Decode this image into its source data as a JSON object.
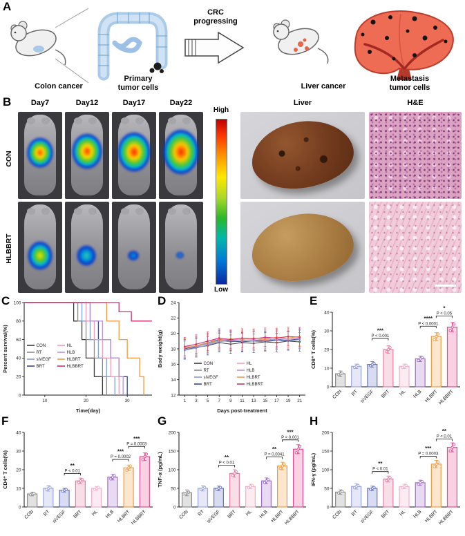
{
  "panels": {
    "A": "A",
    "B": "B",
    "C": "C",
    "D": "D",
    "E": "E",
    "F": "F",
    "G": "G",
    "H": "H"
  },
  "panelA": {
    "arrow_label_line1": "CRC",
    "arrow_label_line2": "progressing",
    "captions": {
      "colon": "Colon cancer",
      "primary_line1": "Primary",
      "primary_line2": "tumor cells",
      "liver": "Liver cancer",
      "metastasis_line1": "Metastasis",
      "metastasis_line2": "tumor cells"
    }
  },
  "panelB": {
    "day_headers": [
      "Day7",
      "Day12",
      "Day17",
      "Day22"
    ],
    "liver_header": "Liver",
    "he_header": "H&E",
    "row_labels": [
      "CON",
      "HLBBRT"
    ],
    "colorbar_high": "High",
    "colorbar_low": "Low"
  },
  "groups": [
    {
      "name": "CON",
      "line_color": "#3a3a3a",
      "bar_color": "#8a8a8a"
    },
    {
      "name": "RT",
      "line_color": "#8a8a8a",
      "bar_color": "#9aa4de"
    },
    {
      "name": "siVEGF",
      "line_color": "#7e9fd8",
      "bar_color": "#6272c8"
    },
    {
      "name": "BRT",
      "line_color": "#32458f",
      "bar_color": "#e87d9e"
    },
    {
      "name": "HL",
      "line_color": "#f49ab5",
      "bar_color": "#f5aec6"
    },
    {
      "name": "HLB",
      "line_color": "#b793d6",
      "bar_color": "#a06cc8"
    },
    {
      "name": "HLBRT",
      "line_color": "#f59a3d",
      "bar_color": "#f59a3d"
    },
    {
      "name": "HLBBRT",
      "line_color": "#cf2d6e",
      "bar_color": "#e8488f"
    }
  ],
  "chart_data": [
    {
      "panel": "C",
      "type": "line",
      "step": true,
      "xlabel": "Time(day)",
      "ylabel": "Percent survival(%)",
      "xlim": [
        5,
        36
      ],
      "ylim": [
        0,
        100
      ],
      "xticks": [
        10,
        20,
        30
      ],
      "yticks": [
        0,
        20,
        40,
        60,
        80,
        100
      ],
      "legend_x": 4,
      "legend_y": 62,
      "legend_dx": 44,
      "legend_cols": [
        [
          "CON",
          "RT",
          "siVEGF",
          "BRT"
        ],
        [
          "HL",
          "HLB",
          "HLBRT",
          "HLBBRT"
        ]
      ],
      "series": [
        {
          "name": "CON",
          "color": "#3a3a3a",
          "points": [
            [
              5,
              100
            ],
            [
              15,
              100
            ],
            [
              17,
              80
            ],
            [
              19,
              60
            ],
            [
              20,
              40
            ],
            [
              22,
              20
            ],
            [
              24,
              0
            ]
          ]
        },
        {
          "name": "RT",
          "color": "#8a8a8a",
          "points": [
            [
              5,
              100
            ],
            [
              16,
              100
            ],
            [
              18,
              80
            ],
            [
              20,
              60
            ],
            [
              22,
              40
            ],
            [
              24,
              20
            ],
            [
              25,
              0
            ]
          ]
        },
        {
          "name": "siVEGF",
          "color": "#7e9fd8",
          "points": [
            [
              5,
              100
            ],
            [
              17,
              100
            ],
            [
              19,
              80
            ],
            [
              21,
              60
            ],
            [
              23,
              40
            ],
            [
              25,
              20
            ],
            [
              27,
              0
            ]
          ]
        },
        {
          "name": "BRT",
          "color": "#32458f",
          "points": [
            [
              5,
              100
            ],
            [
              19,
              100
            ],
            [
              21,
              80
            ],
            [
              23,
              60
            ],
            [
              26,
              40
            ],
            [
              28,
              20
            ],
            [
              30,
              0
            ]
          ]
        },
        {
          "name": "HL",
          "color": "#f49ab5",
          "points": [
            [
              5,
              100
            ],
            [
              17,
              100
            ],
            [
              20,
              80
            ],
            [
              22,
              60
            ],
            [
              24,
              40
            ],
            [
              26,
              20
            ],
            [
              28,
              0
            ]
          ]
        },
        {
          "name": "HLB",
          "color": "#b793d6",
          "points": [
            [
              5,
              100
            ],
            [
              18,
              100
            ],
            [
              21,
              80
            ],
            [
              24,
              60
            ],
            [
              26,
              40
            ],
            [
              28,
              20
            ],
            [
              29,
              0
            ]
          ]
        },
        {
          "name": "HLBRT",
          "color": "#f59a3d",
          "points": [
            [
              5,
              100
            ],
            [
              22,
              100
            ],
            [
              25,
              80
            ],
            [
              28,
              60
            ],
            [
              30,
              40
            ],
            [
              33,
              20
            ],
            [
              34,
              0
            ]
          ]
        },
        {
          "name": "HLBBRT",
          "color": "#cf2d6e",
          "points": [
            [
              5,
              100
            ],
            [
              26,
              100
            ],
            [
              28,
              90
            ],
            [
              31,
              80
            ],
            [
              36,
              80
            ]
          ]
        }
      ]
    },
    {
      "panel": "D",
      "type": "line",
      "step": false,
      "xlabel": "Days post-treatment",
      "ylabel": "Body weight(g)",
      "x": [
        1,
        3,
        5,
        7,
        9,
        11,
        13,
        15,
        17,
        19,
        21
      ],
      "xlim": [
        0,
        22
      ],
      "ylim": [
        12,
        24
      ],
      "xticks": [
        1,
        3,
        5,
        7,
        9,
        11,
        13,
        15,
        17,
        19,
        21
      ],
      "yticks": [
        12,
        14,
        16,
        18,
        20,
        22,
        24
      ],
      "error": 1.2,
      "legend_x": 22,
      "legend_y": 88,
      "legend_dx": 62,
      "legend_cols": [
        [
          "CON",
          "RT",
          "siVEGF",
          "BRT"
        ],
        [
          "HL",
          "HLB",
          "HLBRT",
          "HLBBRT"
        ]
      ],
      "series": [
        {
          "name": "CON",
          "color": "#3a3a3a",
          "values": [
            17.9,
            18.2,
            18.4,
            18.8,
            18.6,
            18.8,
            18.7,
            18.9,
            18.8,
            19.0,
            18.9
          ]
        },
        {
          "name": "RT",
          "color": "#8a8a8a",
          "values": [
            18.1,
            18.4,
            18.7,
            19.1,
            18.9,
            19.1,
            19.0,
            18.9,
            19.1,
            19.0,
            19.2
          ]
        },
        {
          "name": "siVEGF",
          "color": "#7e9fd8",
          "values": [
            17.8,
            18.1,
            18.5,
            18.9,
            19.1,
            18.9,
            19.0,
            19.2,
            19.1,
            19.0,
            19.2
          ]
        },
        {
          "name": "BRT",
          "color": "#32458f",
          "values": [
            18.0,
            18.4,
            18.8,
            19.2,
            19.0,
            18.9,
            19.1,
            19.0,
            19.2,
            19.1,
            19.3
          ]
        },
        {
          "name": "HL",
          "color": "#f49ab5",
          "values": [
            18.2,
            18.6,
            19.0,
            19.3,
            19.1,
            19.3,
            19.2,
            19.1,
            19.3,
            19.2,
            19.4
          ]
        },
        {
          "name": "HLB",
          "color": "#b793d6",
          "values": [
            17.9,
            18.3,
            18.6,
            19.0,
            19.2,
            19.0,
            19.1,
            19.3,
            19.2,
            19.4,
            19.3
          ]
        },
        {
          "name": "HLBRT",
          "color": "#f59a3d",
          "values": [
            18.1,
            18.4,
            18.8,
            19.1,
            19.3,
            19.2,
            19.4,
            19.3,
            19.5,
            19.4,
            19.6
          ]
        },
        {
          "name": "HLBBRT",
          "color": "#cf2d6e",
          "values": [
            18.3,
            18.6,
            19.0,
            19.4,
            19.2,
            19.4,
            19.3,
            19.5,
            19.4,
            19.6,
            19.5
          ]
        }
      ]
    },
    {
      "panel": "E",
      "type": "bar",
      "ylabel": "CD8⁺ T cells(%)",
      "categories": [
        "CON",
        "RT",
        "siVEGF",
        "BRT",
        "HL",
        "HLB",
        "HLBRT",
        "HLBBRT"
      ],
      "values": [
        7,
        11,
        12,
        20,
        11,
        15,
        27,
        32
      ],
      "errors": [
        1.5,
        1.2,
        1.5,
        2,
        1.2,
        1.5,
        2,
        2.5
      ],
      "ylim": [
        0,
        40
      ],
      "yticks": [
        0,
        10,
        20,
        30,
        40
      ],
      "significance": [
        {
          "from": "siVEGF",
          "to": "BRT",
          "stars": "***",
          "p": "P < 0.001",
          "y": 26
        },
        {
          "from": "HLB",
          "to": "HLBRT",
          "stars": "****",
          "p": "P < 0.0001",
          "y": 32.5
        },
        {
          "from": "HLBRT",
          "to": "HLBBRT",
          "stars": "*",
          "p": "P < 0.05",
          "y": 38
        }
      ]
    },
    {
      "panel": "F",
      "type": "bar",
      "ylabel": "CD4⁺ T cells(%)",
      "categories": [
        "CON",
        "RT",
        "siVEGF",
        "BRT",
        "HL",
        "HLB",
        "HLBRT",
        "HLBBRT"
      ],
      "values": [
        7,
        10,
        9,
        14,
        10,
        16,
        21,
        27
      ],
      "errors": [
        1,
        1.5,
        1,
        1.5,
        1,
        1.5,
        1.5,
        2
      ],
      "ylim": [
        0,
        40
      ],
      "yticks": [
        0,
        10,
        20,
        30,
        40
      ],
      "significance": [
        {
          "from": "siVEGF",
          "to": "BRT",
          "stars": "**",
          "p": "P < 0.01",
          "y": 18
        },
        {
          "from": "HLB",
          "to": "HLBRT",
          "stars": "***",
          "p": "P = 0.0002",
          "y": 25.5
        },
        {
          "from": "HLBRT",
          "to": "HLBBRT",
          "stars": "***",
          "p": "P = 0.0003",
          "y": 32.5
        }
      ]
    },
    {
      "panel": "G",
      "type": "bar",
      "ylabel": "TNF-α (pg/mL)",
      "categories": [
        "CON",
        "RT",
        "siVEGF",
        "BRT",
        "HL",
        "HLB",
        "HLBRT",
        "HLBBRT"
      ],
      "values": [
        38,
        50,
        50,
        90,
        55,
        70,
        110,
        155
      ],
      "errors": [
        8,
        7,
        6,
        10,
        6,
        8,
        10,
        12
      ],
      "ylim": [
        0,
        200
      ],
      "yticks": [
        0,
        50,
        100,
        150,
        200
      ],
      "significance": [
        {
          "from": "siVEGF",
          "to": "BRT",
          "stars": "**",
          "p": "P < 0.01",
          "y": 112
        },
        {
          "from": "HLB",
          "to": "HLBRT",
          "stars": "**",
          "p": "P = 0.0041",
          "y": 134
        },
        {
          "from": "HLBRT",
          "to": "HLBBRT",
          "stars": "***",
          "p": "P < 0.001",
          "y": 180
        }
      ]
    },
    {
      "panel": "H",
      "type": "bar",
      "ylabel": "IFN-γ (pg/mL)",
      "categories": [
        "CON",
        "RT",
        "siVEGF",
        "BRT",
        "HL",
        "HLB",
        "HLBRT",
        "HLBBRT"
      ],
      "values": [
        40,
        55,
        50,
        75,
        55,
        65,
        115,
        160
      ],
      "errors": [
        6,
        7,
        6,
        8,
        6,
        7,
        10,
        12
      ],
      "ylim": [
        0,
        200
      ],
      "yticks": [
        0,
        50,
        100,
        150,
        200
      ],
      "significance": [
        {
          "from": "siVEGF",
          "to": "BRT",
          "stars": "**",
          "p": "P < 0.01",
          "y": 95
        },
        {
          "from": "HLB",
          "to": "HLBRT",
          "stars": "***",
          "p": "P = 0.0003",
          "y": 136
        },
        {
          "from": "HLBRT",
          "to": "HLBBRT",
          "stars": "**",
          "p": "P < 0.01",
          "y": 182
        }
      ]
    }
  ]
}
